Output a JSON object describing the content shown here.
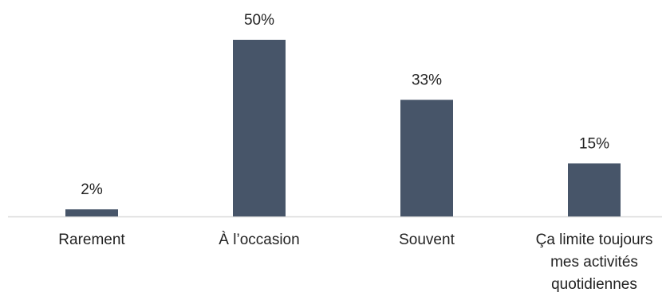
{
  "chart_data": {
    "type": "bar",
    "categories": [
      "Rarement",
      "À l’occasion",
      "Souvent",
      "Ça limite toujours mes activités quotidiennes"
    ],
    "category_label_lines": [
      [
        "Rarement"
      ],
      [
        "À l’occasion"
      ],
      [
        "Souvent"
      ],
      [
        "Ça limite toujours",
        "mes activités",
        "quotidiennes"
      ]
    ],
    "values": [
      2,
      50,
      33,
      15
    ],
    "data_labels": [
      "2%",
      "50%",
      "33%",
      "15%"
    ],
    "unit": "%",
    "ylim": [
      0,
      55
    ],
    "bar_color": "#475569",
    "grid": false,
    "legend": "none"
  }
}
